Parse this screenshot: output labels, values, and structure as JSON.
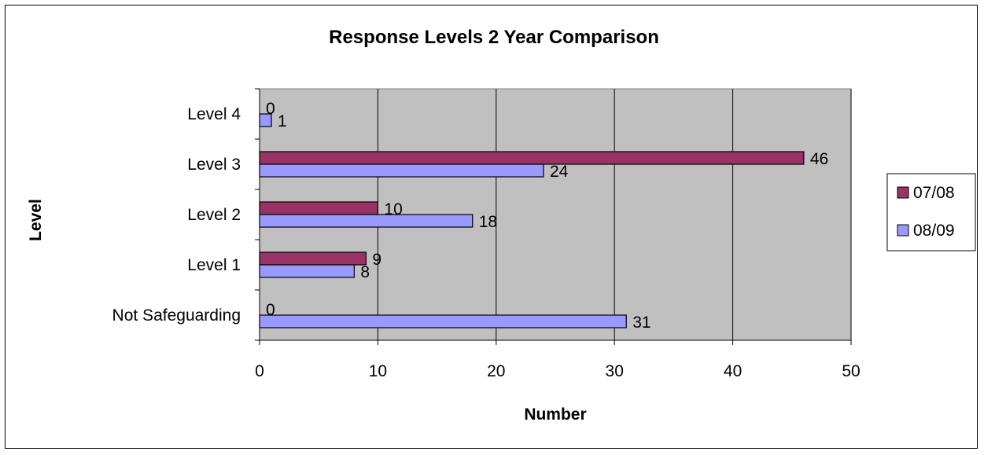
{
  "chart_data": {
    "type": "bar",
    "orientation": "horizontal",
    "title": "Response Levels 2 Year Comparison",
    "xlabel": "Number",
    "ylabel": "Level",
    "categories": [
      "Not Safeguarding",
      "Level 1",
      "Level 2",
      "Level 3",
      "Level 4"
    ],
    "series": [
      {
        "name": "07/08",
        "values": [
          0,
          9,
          10,
          46,
          0
        ],
        "color": "#993366"
      },
      {
        "name": "08/09",
        "values": [
          31,
          8,
          18,
          24,
          1
        ],
        "color": "#9999FF"
      }
    ],
    "xlim": [
      0,
      50
    ],
    "xticks": [
      0,
      10,
      20,
      30,
      40,
      50
    ],
    "grid": true,
    "plot_background": "#C0C0C0",
    "legend_position": "right"
  }
}
